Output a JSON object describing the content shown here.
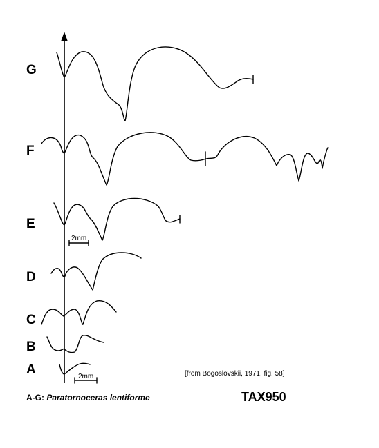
{
  "stages": [
    {
      "id": "G",
      "label": "G"
    },
    {
      "id": "F",
      "label": "F"
    },
    {
      "id": "E",
      "label": "E"
    },
    {
      "id": "D",
      "label": "D"
    },
    {
      "id": "C",
      "label": "C"
    },
    {
      "id": "B",
      "label": "B"
    },
    {
      "id": "A",
      "label": "A"
    }
  ],
  "scale_bars": [
    {
      "label": "2mm"
    },
    {
      "label": "2mm"
    }
  ],
  "source_note": "[from Bogoslovskii, 1971, fig. 58]",
  "caption": {
    "prefix": "A-G: ",
    "taxon": "Paratornoceras lentiforme"
  },
  "tax_id": "TAX950"
}
